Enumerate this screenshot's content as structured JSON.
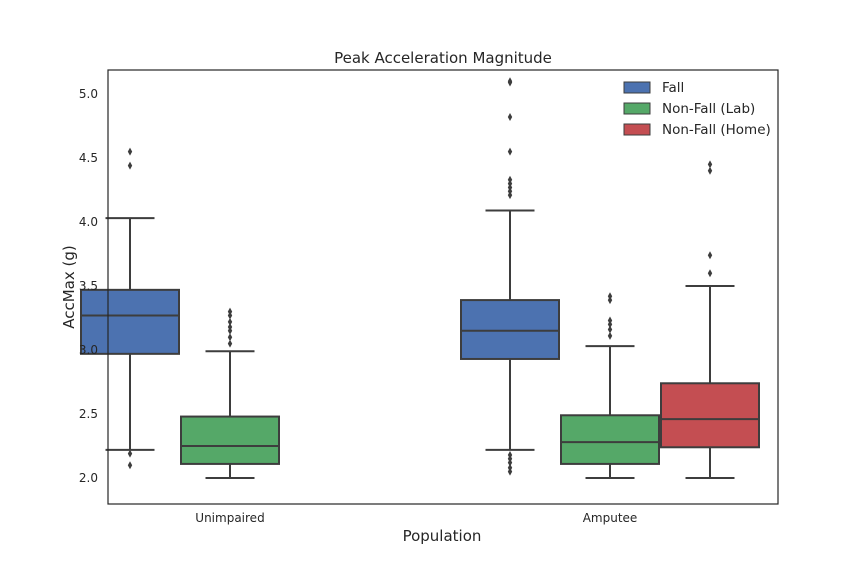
{
  "chart_data": {
    "type": "box",
    "title": "Peak Acceleration Magnitude",
    "xlabel": "Population",
    "ylabel": "AccMax (g)",
    "categories": [
      "Unimpaired",
      "Amputee"
    ],
    "ylim": [
      1.8,
      5.2
    ],
    "yticks": [
      "2.0",
      "2.5",
      "3.0",
      "3.5",
      "4.0",
      "4.5",
      "5.0"
    ],
    "legend_position": "top-right",
    "grid": false,
    "series": [
      {
        "name": "Fall",
        "color": "#4c72b0",
        "boxes": [
          {
            "category": "Unimpaired",
            "whisker_low": 2.22,
            "q1": 2.97,
            "median": 3.27,
            "q3": 3.47,
            "whisker_high": 4.03,
            "outliers": [
              2.1,
              2.19,
              4.44,
              4.55
            ]
          },
          {
            "category": "Amputee",
            "whisker_low": 2.22,
            "q1": 2.93,
            "median": 3.15,
            "q3": 3.39,
            "whisker_high": 4.09,
            "outliers": [
              2.05,
              2.08,
              2.12,
              2.15,
              2.18,
              4.21,
              4.24,
              4.27,
              4.3,
              4.33,
              4.55,
              4.82,
              5.09,
              5.1
            ]
          }
        ]
      },
      {
        "name": "Non-Fall (Lab)",
        "color": "#55a868",
        "boxes": [
          {
            "category": "Unimpaired",
            "whisker_low": 2.0,
            "q1": 2.11,
            "median": 2.25,
            "q3": 2.48,
            "whisker_high": 2.99,
            "outliers": [
              3.05,
              3.1,
              3.15,
              3.18,
              3.22,
              3.27,
              3.3
            ]
          },
          {
            "category": "Amputee",
            "whisker_low": 2.0,
            "q1": 2.11,
            "median": 2.28,
            "q3": 2.49,
            "whisker_high": 3.03,
            "outliers": [
              3.11,
              3.16,
              3.2,
              3.23,
              3.39,
              3.42
            ]
          }
        ]
      },
      {
        "name": "Non-Fall (Home)",
        "color": "#c44e52",
        "boxes": [
          {
            "category": "Amputee",
            "whisker_low": 2.0,
            "q1": 2.24,
            "median": 2.46,
            "q3": 2.74,
            "whisker_high": 3.5,
            "outliers": [
              3.6,
              3.74,
              4.4,
              4.45
            ]
          }
        ]
      }
    ]
  }
}
